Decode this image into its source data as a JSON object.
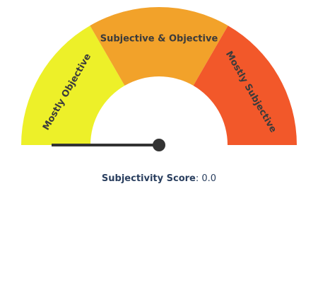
{
  "gauge": {
    "segments": [
      {
        "label": "Mostly Objective",
        "color": "#EDF029",
        "from": 0,
        "to": 0.333
      },
      {
        "label": "Subjective & Objective",
        "color": "#F2A22A",
        "from": 0.333,
        "to": 0.667
      },
      {
        "label": "Mostly Subjective",
        "color": "#F2582A",
        "from": 0.667,
        "to": 1
      }
    ],
    "needle_value": 0.0,
    "needle_color": "#333333"
  },
  "score": {
    "label": "Subjectivity Score",
    "separator": ": ",
    "value": "0.0"
  }
}
